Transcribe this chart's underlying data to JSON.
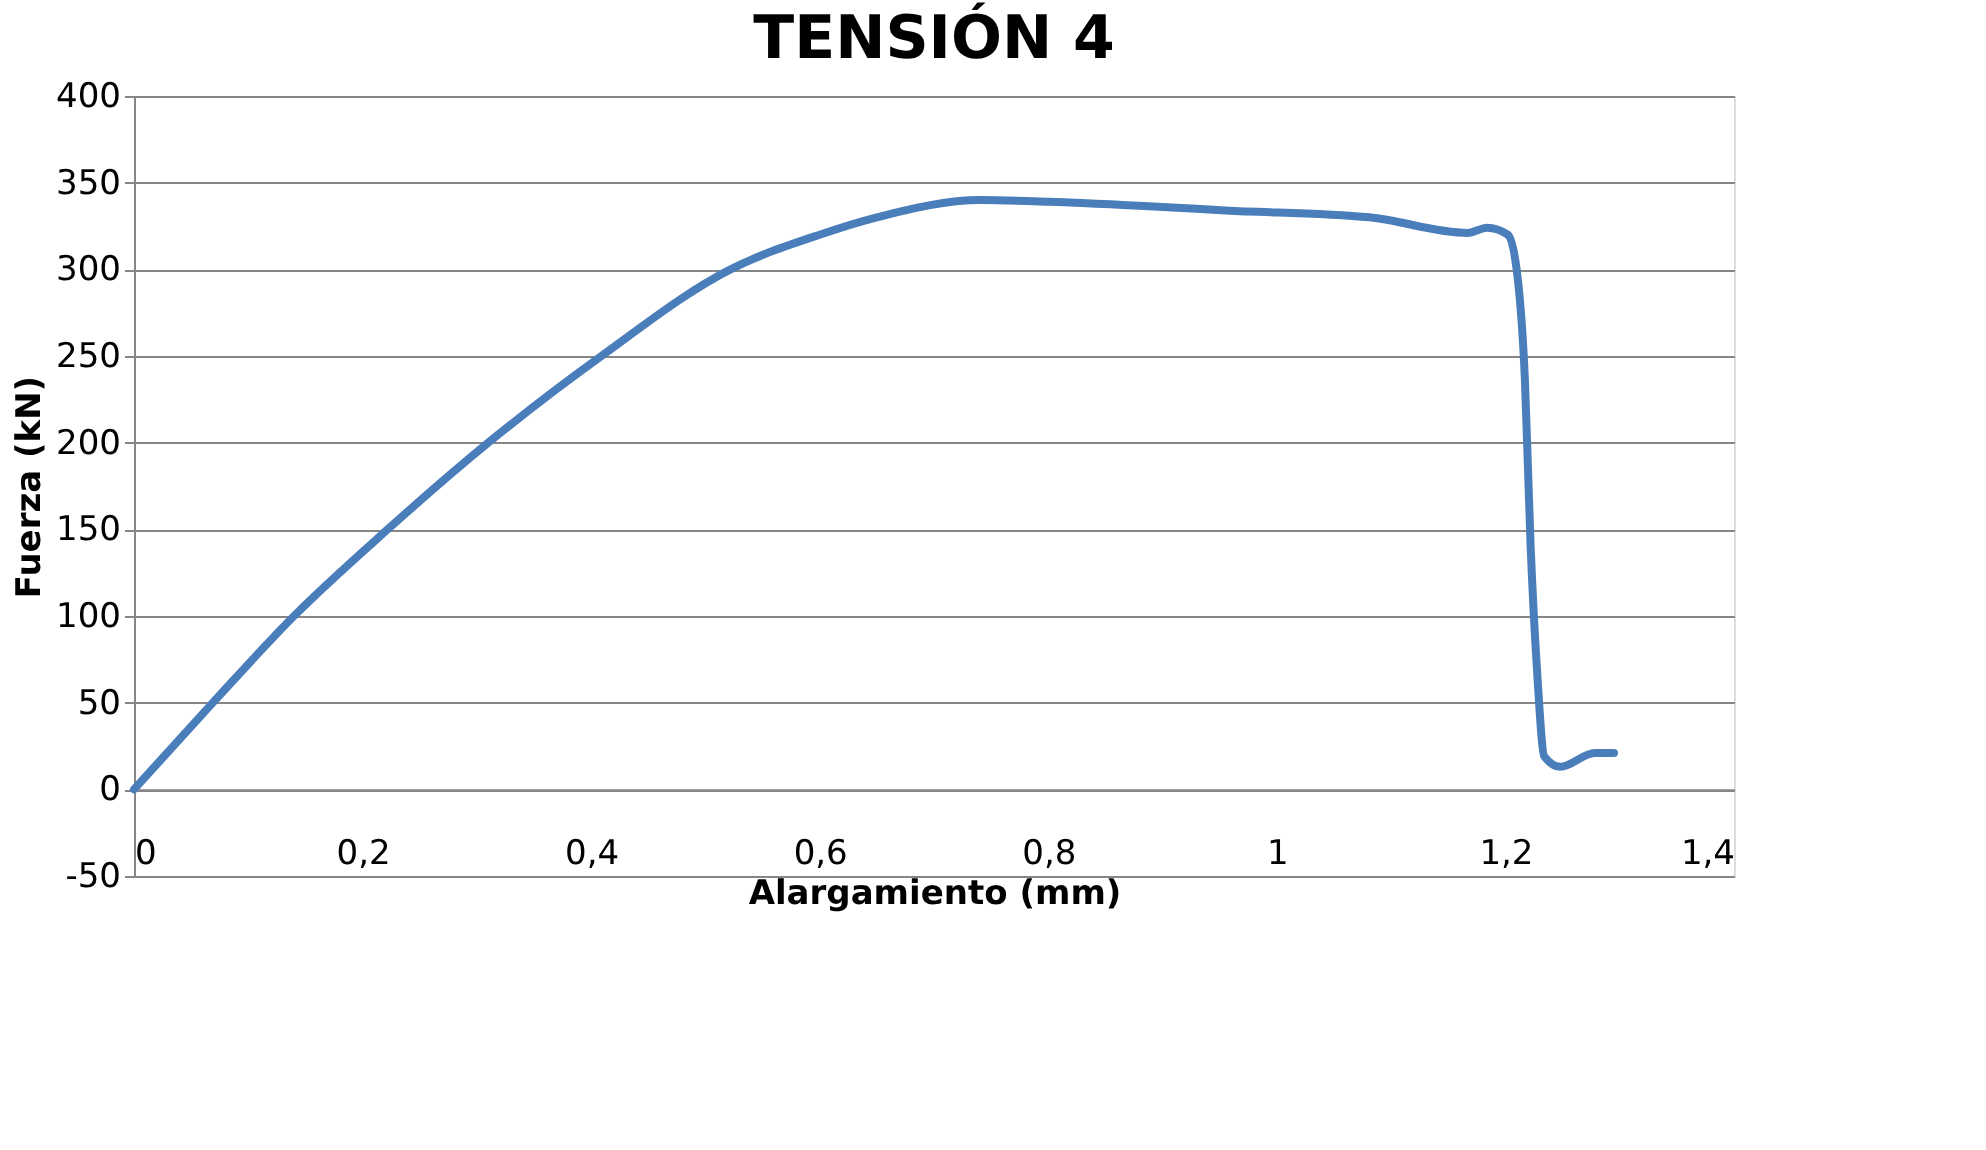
{
  "chart_data": {
    "type": "line",
    "title": "TENSIÓN 4",
    "xlabel": "Alargamiento (mm)",
    "ylabel": "Fuerza (kN)",
    "x": [
      0,
      0.069,
      0.14,
      0.222,
      0.31,
      0.409,
      0.522,
      0.6,
      0.65,
      0.741,
      0.8,
      0.9,
      0.955,
      1.081,
      1.167,
      1.184,
      1.202,
      1.21,
      1.217,
      1.222,
      1.228,
      1.234,
      1.248,
      1.278,
      1.295
    ],
    "series": [
      {
        "color": "#4a7ebb",
        "values": [
          0,
          50,
          100,
          150,
          200,
          250,
          300,
          320,
          330,
          340,
          339,
          336,
          334,
          330,
          321,
          324,
          320,
          299,
          237,
          141,
          65,
          19,
          13,
          21,
          21
        ]
      }
    ],
    "xlim": [
      0,
      1.4
    ],
    "xticks": [
      {
        "value": 0,
        "label": "0"
      },
      {
        "value": 0.2,
        "label": "0,2"
      },
      {
        "value": 0.4,
        "label": "0,4"
      },
      {
        "value": 0.6,
        "label": "0,6"
      },
      {
        "value": 0.8,
        "label": "0,8"
      },
      {
        "value": 1,
        "label": "1"
      },
      {
        "value": 1.2,
        "label": "1,2"
      },
      {
        "value": 1.4,
        "label": "1,4"
      }
    ],
    "ylim": [
      -50,
      400
    ],
    "yticks": [
      -50,
      0,
      50,
      100,
      150,
      200,
      250,
      300,
      350,
      400
    ],
    "grid": "y",
    "legend": false
  }
}
